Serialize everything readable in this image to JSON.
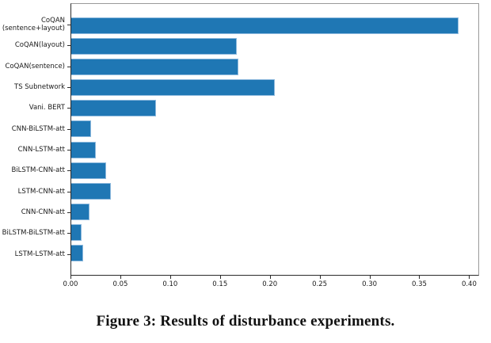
{
  "figure": {
    "caption": "Figure 3: Results of disturbance experiments."
  },
  "chart_data": {
    "type": "bar",
    "orientation": "horizontal",
    "title": "",
    "xlabel": "",
    "ylabel": "",
    "categories": [
      "CoQAN\n(sentence+layout)",
      "CoQAN(layout)",
      "CoQAN(sentence)",
      "TS Subnetwork",
      "Vani. BERT",
      "CNN-BiLSTM-att",
      "CNN-LSTM-att",
      "BiLSTM-CNN-att",
      "LSTM-CNN-att",
      "CNN-CNN-att",
      "BiLSTM-BiLSTM-att",
      "LSTM-LSTM-att"
    ],
    "values": [
      0.39,
      0.167,
      0.168,
      0.205,
      0.085,
      0.02,
      0.025,
      0.035,
      0.04,
      0.018,
      0.01,
      0.012
    ],
    "xlim": [
      0.0,
      0.41
    ],
    "x_tick_values": [
      0.0,
      0.05,
      0.1,
      0.15,
      0.2,
      0.25,
      0.3,
      0.35,
      0.4
    ],
    "x_tick_labels": [
      "0.00",
      "0.05",
      "0.10",
      "0.15",
      "0.20",
      "0.25",
      "0.30",
      "0.35",
      "0.40"
    ],
    "bar_color": "#1f77b4",
    "bar_edge_color": "#8db9dd",
    "grid": false,
    "legend": false
  }
}
